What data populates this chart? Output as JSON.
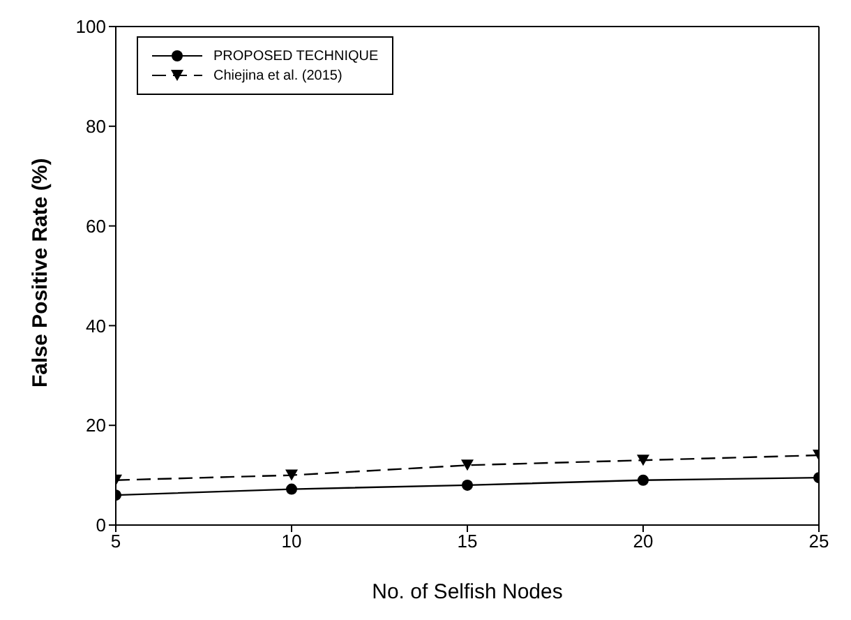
{
  "chart_data": {
    "type": "line",
    "xlabel": "No. of Selfish Nodes",
    "ylabel": "False Positive Rate (%)",
    "x": [
      5,
      10,
      15,
      20,
      25
    ],
    "xlim": [
      5,
      25
    ],
    "xticks": [
      5,
      10,
      15,
      20,
      25
    ],
    "ylim": [
      0,
      100
    ],
    "yticks": [
      0,
      20,
      40,
      60,
      80,
      100
    ],
    "grid": false,
    "legend": "top left",
    "series": [
      {
        "name": "PROPOSED TECHNIQUE",
        "color": "#000000",
        "values": [
          6,
          7.2,
          8,
          9,
          9.5
        ],
        "marker": "circle",
        "line_style": "solid"
      },
      {
        "name": "Chiejina et al. (2015)",
        "color": "#000000",
        "values": [
          9,
          10,
          12,
          13,
          14
        ],
        "marker": "triangle",
        "line_style": "dashed"
      }
    ]
  }
}
